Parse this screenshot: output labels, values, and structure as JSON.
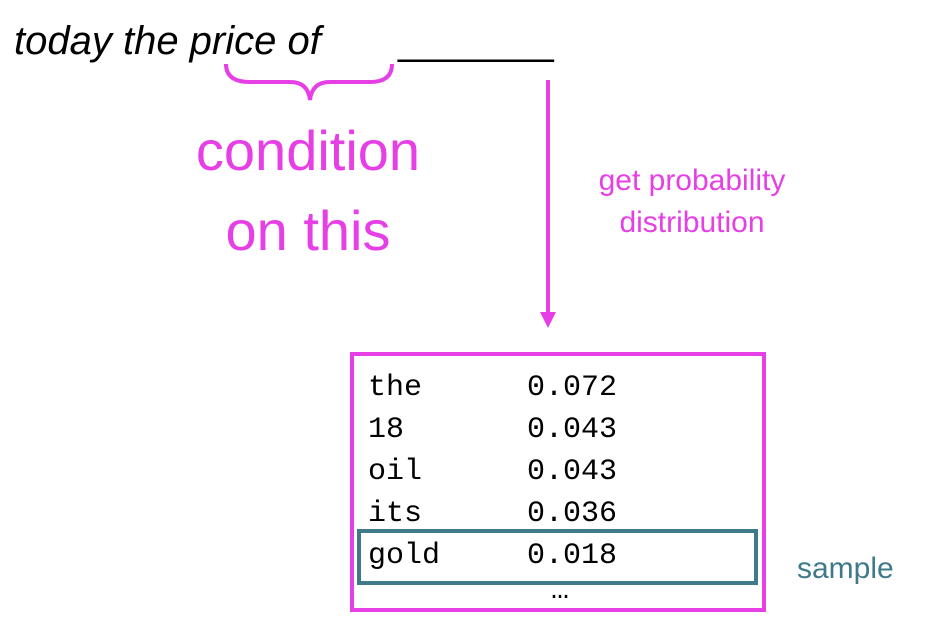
{
  "sentence": {
    "text": "today the price of",
    "blank": "_______"
  },
  "condition_label": [
    "condition",
    "on this"
  ],
  "arrow_label": [
    "get probability",
    "distribution"
  ],
  "table": {
    "rows": [
      [
        "the",
        "0.072"
      ],
      [
        "18",
        "0.043"
      ],
      [
        "oil",
        "0.043"
      ],
      [
        "its",
        "0.036"
      ],
      [
        "gold",
        "0.018"
      ]
    ],
    "ellipsis": "…"
  },
  "sample_label": "sample"
}
